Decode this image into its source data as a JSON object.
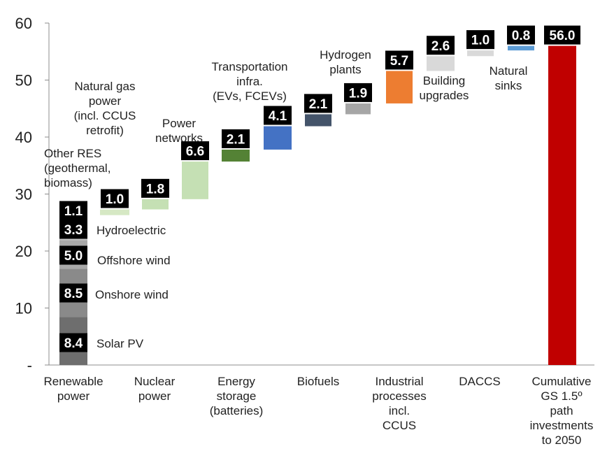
{
  "chart_data": {
    "type": "bar",
    "subtype": "waterfall",
    "ylim": [
      0,
      60
    ],
    "yticks": [
      "-",
      "10",
      "20",
      "30",
      "40",
      "50",
      "60"
    ],
    "grid": false,
    "x_category_labels": [
      {
        "id": "renewable",
        "lines": [
          "Renewable",
          "power"
        ]
      },
      {
        "id": "nuclear",
        "lines": [
          "Nuclear",
          "power"
        ]
      },
      {
        "id": "storage",
        "lines": [
          "Energy",
          "storage",
          "(batteries)"
        ]
      },
      {
        "id": "biofuels",
        "lines": [
          "Biofuels"
        ]
      },
      {
        "id": "industrial",
        "lines": [
          "Industrial",
          "processes",
          "incl.",
          "CCUS"
        ]
      },
      {
        "id": "daccs",
        "lines": [
          "DACCS"
        ]
      },
      {
        "id": "cumulative",
        "lines": [
          "Cumulative",
          "GS 1.5º",
          "path",
          "investments",
          "to 2050"
        ]
      }
    ],
    "segments": [
      {
        "id": "solar-pv",
        "label": "8.4",
        "value": 8.4,
        "start": 0,
        "color": "#6e6e6e",
        "name_lines": [
          "Solar PV"
        ]
      },
      {
        "id": "onshore-wind",
        "label": "8.5",
        "value": 8.5,
        "start": 8.4,
        "color": "#8a8a8a",
        "name_lines": [
          "Onshore wind"
        ]
      },
      {
        "id": "offshore-wind",
        "label": "5.0",
        "value": 5.0,
        "start": 16.9,
        "color": "#a9a9a9",
        "name_lines": [
          "Offshore wind"
        ]
      },
      {
        "id": "hydroelectric",
        "label": "3.3",
        "value": 3.3,
        "start": 21.9,
        "color": "#c4c4c4",
        "name_lines": [
          "Hydroelectric"
        ]
      },
      {
        "id": "other-res",
        "label": "1.1",
        "value": 1.1,
        "start": 25.2,
        "color": "#d9d9d9",
        "name_lines": [
          "Other RES",
          "(geothermal,",
          "biomass)"
        ]
      },
      {
        "id": "natural-gas-power",
        "label": "1.0",
        "value": 1.0,
        "start": 26.3,
        "color": "#d6e8c4",
        "name_lines": [
          "Natural gas",
          "power",
          "(incl. CCUS",
          "retrofit)"
        ]
      },
      {
        "id": "nuclear-power",
        "label": "1.8",
        "value": 1.8,
        "start": 27.3,
        "color": "#c5e0b4",
        "name_lines": []
      },
      {
        "id": "power-networks",
        "label": "6.6",
        "value": 6.6,
        "start": 29.1,
        "color": "#c5e0b4",
        "name_lines": [
          "Power",
          "networks"
        ]
      },
      {
        "id": "energy-storage",
        "label": "2.1",
        "value": 2.1,
        "start": 35.7,
        "color": "#548235",
        "name_lines": []
      },
      {
        "id": "transportation-infra",
        "label": "4.1",
        "value": 4.1,
        "start": 37.8,
        "color": "#4472c4",
        "name_lines": [
          "Transportation",
          "infra.",
          "(EVs, FCEVs)"
        ]
      },
      {
        "id": "biofuels",
        "label": "2.1",
        "value": 2.1,
        "start": 41.9,
        "color": "#44546a",
        "name_lines": []
      },
      {
        "id": "hydrogen-plants",
        "label": "1.9",
        "value": 1.9,
        "start": 44.0,
        "color": "#a6a6a6",
        "name_lines": [
          "Hydrogen",
          "plants"
        ]
      },
      {
        "id": "industrial-processes",
        "label": "5.7",
        "value": 5.7,
        "start": 45.9,
        "color": "#ed7d31",
        "name_lines": []
      },
      {
        "id": "building-upgrades",
        "label": "2.6",
        "value": 2.6,
        "start": 51.6,
        "color": "#d9d9d9",
        "name_lines": [
          "Building",
          "upgrades"
        ]
      },
      {
        "id": "daccs",
        "label": "1.0",
        "value": 1.0,
        "start": 54.2,
        "color": "#d9d9d9",
        "name_lines": []
      },
      {
        "id": "natural-sinks",
        "label": "0.8",
        "value": 0.8,
        "start": 55.2,
        "color": "#5b9bd5",
        "name_lines": [
          "Natural",
          "sinks"
        ]
      },
      {
        "id": "cumulative",
        "label": "56.0",
        "value": 56.0,
        "start": 0,
        "color": "#c00000",
        "name_lines": []
      }
    ]
  }
}
